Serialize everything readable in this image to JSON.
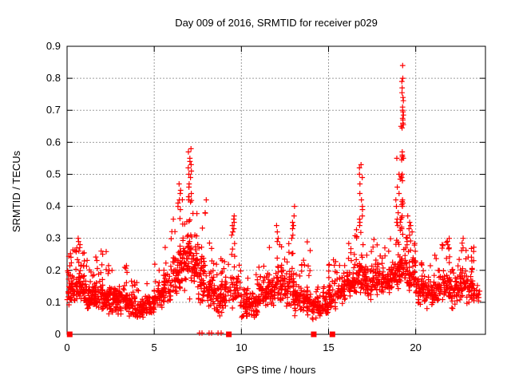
{
  "window": {
    "background": "#ffffff"
  },
  "chart_data": {
    "type": "scatter",
    "title": "Day 009 of 2016, SRMTID for receiver p029",
    "xlabel": "GPS time / hours",
    "ylabel": "SRMTID / TECUs",
    "xlim": [
      0,
      24
    ],
    "ylim": [
      0,
      0.9
    ],
    "xticks": {
      "values": [
        0,
        5,
        10,
        15,
        20
      ],
      "labels": [
        "0",
        "5",
        "10",
        "15",
        "20"
      ]
    },
    "yticks": {
      "values": [
        0,
        0.1,
        0.2,
        0.3,
        0.4,
        0.5,
        0.6,
        0.7,
        0.8,
        0.9
      ],
      "labels": [
        "0",
        "0.1",
        "0.2",
        "0.3",
        "0.4",
        "0.5",
        "0.6",
        "0.7",
        "0.8",
        "0.9"
      ]
    },
    "grid": true,
    "legend": "none",
    "marker": "plus",
    "marker_size": 7,
    "colors": {
      "points": "#ff0000",
      "grid": "#9e9e9e",
      "border": "#000000",
      "text": "#000000",
      "background": "#ffffff"
    },
    "seed": 20160109,
    "scatter_model": {
      "comment_bins": "each bin = [xStart, xEnd, count, yLow, yMode, yHigh] of red plus markers",
      "baseline_bins": [
        [
          0.0,
          0.5,
          55,
          0.06,
          0.13,
          0.27
        ],
        [
          0.5,
          1.0,
          60,
          0.06,
          0.15,
          0.3
        ],
        [
          1.0,
          1.5,
          50,
          0.05,
          0.12,
          0.24
        ],
        [
          1.5,
          2.0,
          50,
          0.05,
          0.12,
          0.26
        ],
        [
          2.0,
          2.5,
          50,
          0.04,
          0.11,
          0.26
        ],
        [
          2.5,
          3.0,
          48,
          0.04,
          0.11,
          0.2
        ],
        [
          3.0,
          3.5,
          48,
          0.04,
          0.11,
          0.22
        ],
        [
          3.5,
          4.0,
          45,
          0.02,
          0.09,
          0.17
        ],
        [
          4.0,
          4.5,
          45,
          0.02,
          0.08,
          0.15
        ],
        [
          4.5,
          5.0,
          45,
          0.04,
          0.09,
          0.18
        ],
        [
          5.0,
          5.5,
          45,
          0.05,
          0.11,
          0.22
        ],
        [
          5.5,
          6.0,
          48,
          0.06,
          0.14,
          0.3
        ],
        [
          6.0,
          6.5,
          52,
          0.08,
          0.18,
          0.38
        ],
        [
          6.5,
          7.0,
          55,
          0.1,
          0.22,
          0.45
        ],
        [
          7.0,
          7.5,
          55,
          0.08,
          0.22,
          0.5
        ],
        [
          7.5,
          8.0,
          50,
          0.04,
          0.16,
          0.42
        ],
        [
          8.0,
          8.5,
          50,
          0.04,
          0.13,
          0.3
        ],
        [
          8.5,
          9.0,
          46,
          0.04,
          0.12,
          0.28
        ],
        [
          9.0,
          9.4,
          28,
          0.05,
          0.12,
          0.24
        ],
        [
          9.4,
          10.0,
          42,
          0.05,
          0.13,
          0.3
        ],
        [
          10.0,
          10.5,
          45,
          0.03,
          0.09,
          0.18
        ],
        [
          10.5,
          11.0,
          45,
          0.03,
          0.09,
          0.2
        ],
        [
          11.0,
          11.5,
          45,
          0.05,
          0.12,
          0.24
        ],
        [
          11.5,
          12.0,
          46,
          0.06,
          0.14,
          0.28
        ],
        [
          12.0,
          12.5,
          46,
          0.06,
          0.15,
          0.3
        ],
        [
          12.5,
          13.0,
          46,
          0.05,
          0.14,
          0.3
        ],
        [
          13.0,
          13.5,
          45,
          0.04,
          0.11,
          0.26
        ],
        [
          13.5,
          14.0,
          45,
          0.03,
          0.1,
          0.3
        ],
        [
          14.0,
          14.5,
          40,
          0.03,
          0.08,
          0.15
        ],
        [
          14.5,
          15.0,
          45,
          0.04,
          0.09,
          0.16
        ],
        [
          15.0,
          15.5,
          46,
          0.05,
          0.12,
          0.25
        ],
        [
          15.5,
          16.0,
          46,
          0.06,
          0.13,
          0.22
        ],
        [
          16.0,
          16.5,
          50,
          0.08,
          0.15,
          0.3
        ],
        [
          16.5,
          17.0,
          50,
          0.1,
          0.18,
          0.33
        ],
        [
          17.0,
          17.5,
          46,
          0.08,
          0.16,
          0.3
        ],
        [
          17.5,
          18.0,
          46,
          0.1,
          0.17,
          0.3
        ],
        [
          18.0,
          18.5,
          46,
          0.1,
          0.16,
          0.28
        ],
        [
          18.5,
          19.0,
          46,
          0.12,
          0.18,
          0.33
        ],
        [
          19.0,
          19.5,
          46,
          0.12,
          0.2,
          0.33
        ],
        [
          19.5,
          20.0,
          50,
          0.1,
          0.19,
          0.35
        ],
        [
          20.0,
          20.5,
          46,
          0.08,
          0.14,
          0.25
        ],
        [
          20.5,
          21.0,
          45,
          0.06,
          0.12,
          0.22
        ],
        [
          21.0,
          21.5,
          45,
          0.08,
          0.14,
          0.26
        ],
        [
          21.5,
          22.0,
          45,
          0.08,
          0.15,
          0.3
        ],
        [
          22.0,
          22.5,
          45,
          0.06,
          0.13,
          0.24
        ],
        [
          22.5,
          23.0,
          45,
          0.08,
          0.15,
          0.3
        ],
        [
          23.0,
          23.4,
          38,
          0.08,
          0.14,
          0.28
        ],
        [
          23.4,
          23.7,
          10,
          0.08,
          0.12,
          0.2
        ]
      ],
      "spike_columns": [
        {
          "x0": 0.55,
          "x1": 0.7,
          "ys": [
            0.3,
            0.29,
            0.27,
            0.26
          ]
        },
        {
          "x0": 1.95,
          "x1": 2.1,
          "ys": [
            0.26,
            0.25
          ]
        },
        {
          "x0": 6.35,
          "x1": 6.55,
          "ys": [
            0.47,
            0.45,
            0.44,
            0.42,
            0.41,
            0.4,
            0.39
          ]
        },
        {
          "x0": 6.95,
          "x1": 7.15,
          "ys": [
            0.58,
            0.57,
            0.55,
            0.54,
            0.53,
            0.52,
            0.51,
            0.5,
            0.49,
            0.47,
            0.46,
            0.44,
            0.43,
            0.42
          ]
        },
        {
          "x0": 7.9,
          "x1": 8.05,
          "ys": [
            0.42,
            0.38
          ]
        },
        {
          "x0": 9.4,
          "x1": 9.6,
          "ys": [
            0.37,
            0.36,
            0.35,
            0.34,
            0.33,
            0.32,
            0.31
          ]
        },
        {
          "x0": 12.0,
          "x1": 12.2,
          "ys": [
            0.34,
            0.32,
            0.3,
            0.29,
            0.28
          ]
        },
        {
          "x0": 12.85,
          "x1": 13.05,
          "ys": [
            0.4,
            0.37,
            0.35,
            0.34,
            0.33,
            0.31,
            0.3
          ]
        },
        {
          "x0": 16.75,
          "x1": 16.95,
          "ys": [
            0.53,
            0.52,
            0.5,
            0.49,
            0.47,
            0.44,
            0.42,
            0.4,
            0.39,
            0.37,
            0.36,
            0.35,
            0.34
          ]
        },
        {
          "x0": 18.85,
          "x1": 19.05,
          "ys": [
            0.55,
            0.5,
            0.46,
            0.44,
            0.42,
            0.4,
            0.38,
            0.36,
            0.35,
            0.34
          ]
        },
        {
          "x0": 19.1,
          "x1": 19.3,
          "ys": [
            0.84,
            0.8,
            0.79,
            0.77,
            0.755,
            0.74,
            0.73,
            0.71,
            0.7,
            0.695,
            0.685,
            0.675,
            0.67,
            0.66,
            0.655,
            0.65,
            0.645,
            0.57,
            0.56,
            0.555,
            0.55,
            0.545,
            0.5,
            0.495,
            0.49,
            0.485,
            0.48,
            0.42,
            0.415,
            0.41,
            0.405,
            0.4,
            0.37,
            0.365,
            0.36,
            0.35,
            0.335,
            0.33,
            0.325
          ]
        },
        {
          "x0": 19.5,
          "x1": 19.8,
          "ys": [
            0.37,
            0.35,
            0.34,
            0.33,
            0.32,
            0.31,
            0.3,
            0.29,
            0.28
          ]
        },
        {
          "x0": 21.8,
          "x1": 21.95,
          "ys": [
            0.3,
            0.29,
            0.28,
            0.27
          ]
        },
        {
          "x0": 22.6,
          "x1": 22.75,
          "ys": [
            0.3,
            0.285,
            0.27
          ]
        }
      ],
      "zero_plus_x": [
        7.6,
        7.74,
        8.15,
        8.29,
        8.66,
        8.84
      ],
      "zero_square_x": [
        0.15,
        9.28,
        14.15,
        15.22
      ]
    }
  }
}
